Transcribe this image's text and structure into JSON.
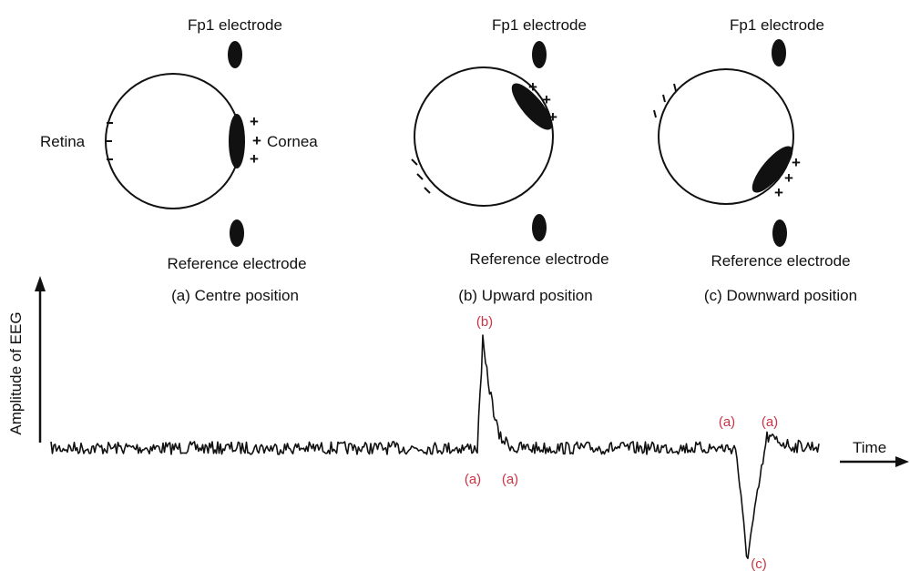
{
  "panels": [
    {
      "top_label": "Fp1 electrode",
      "bottom_label": "Reference electrode",
      "caption": "(a) Centre position",
      "retina_label": "Retina",
      "cornea_label": "Cornea"
    },
    {
      "top_label": "Fp1 electrode",
      "bottom_label": "Reference electrode",
      "caption": "(b) Upward position"
    },
    {
      "top_label": "Fp1 electrode",
      "bottom_label": "Reference electrode",
      "caption": "(c) Downward position"
    }
  ],
  "signal": {
    "y_axis_label": "Amplitude of EEG",
    "x_axis_label": "Time",
    "markers": [
      "(b)",
      "(a)",
      "(a)",
      "(a)",
      "(a)",
      "(c)"
    ],
    "trace_color": "#111111",
    "marker_color": "#cc3344"
  },
  "colors": {
    "ink": "#111111",
    "background": "#ffffff"
  }
}
